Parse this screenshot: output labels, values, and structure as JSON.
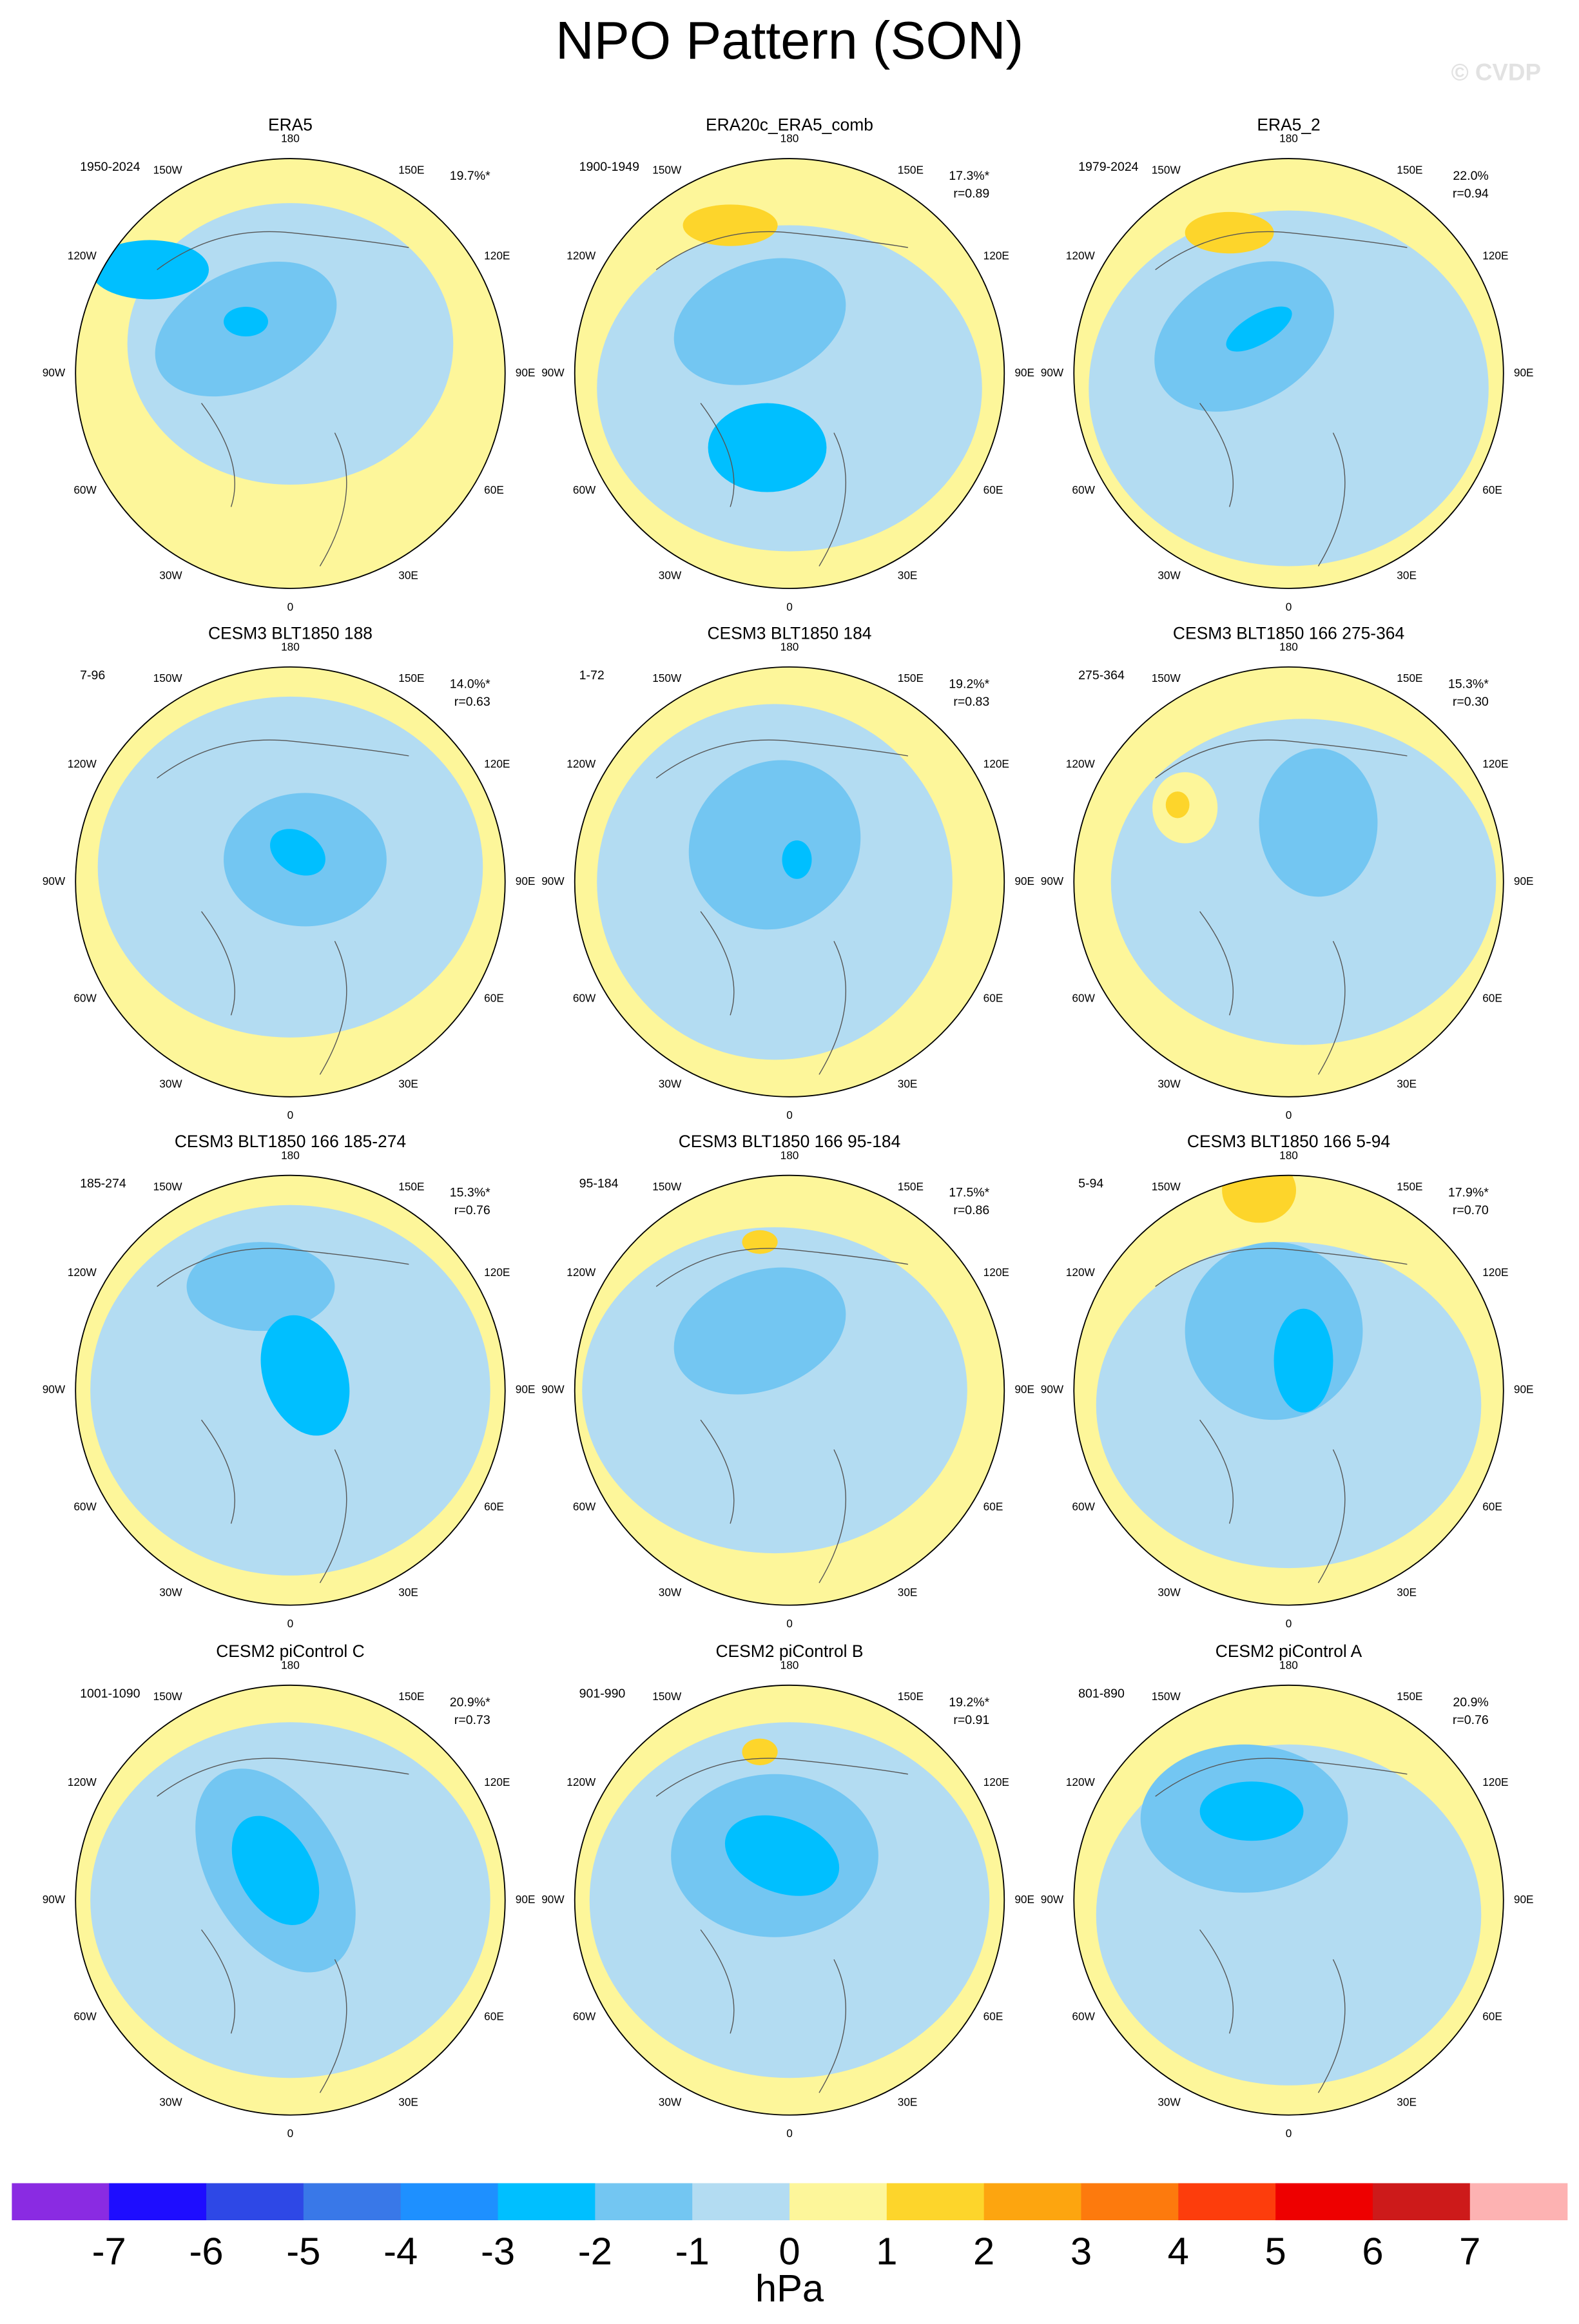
{
  "title": "NPO Pattern (SON)",
  "watermark": "© CVDP",
  "lon_labels": [
    "180",
    "150E",
    "120E",
    "90E",
    "60E",
    "30E",
    "0",
    "30W",
    "60W",
    "90W",
    "120W",
    "150W"
  ],
  "panels": [
    {
      "title": "ERA5",
      "period": "1950-2024",
      "pct": "19.7%*"
    },
    {
      "title": "ERA20c_ERA5_comb",
      "period": "1900-1949",
      "pct": "17.3%*",
      "r": "r=0.89"
    },
    {
      "title": "ERA5_2",
      "period": "1979-2024",
      "pct": "22.0%",
      "r": "r=0.94"
    },
    {
      "title": "CESM3 BLT1850 188",
      "period": "7-96",
      "pct": "14.0%*",
      "r": "r=0.63"
    },
    {
      "title": "CESM3 BLT1850 184",
      "period": "1-72",
      "pct": "19.2%*",
      "r": "r=0.83"
    },
    {
      "title": "CESM3 BLT1850 166 275-364",
      "period": "275-364",
      "pct": "15.3%*",
      "r": "r=0.30"
    },
    {
      "title": "CESM3 BLT1850 166 185-274",
      "period": "185-274",
      "pct": "15.3%*",
      "r": "r=0.76"
    },
    {
      "title": "CESM3 BLT1850 166 95-184",
      "period": "95-184",
      "pct": "17.5%*",
      "r": "r=0.86"
    },
    {
      "title": "CESM3 BLT1850 166 5-94",
      "period": "5-94",
      "pct": "17.9%*",
      "r": "r=0.70"
    },
    {
      "title": "CESM2 piControl C",
      "period": "1001-1090",
      "pct": "20.9%*",
      "r": "r=0.73"
    },
    {
      "title": "CESM2 piControl B",
      "period": "901-990",
      "pct": "19.2%*",
      "r": "r=0.91"
    },
    {
      "title": "CESM2 piControl A",
      "period": "801-890",
      "pct": "20.9%",
      "r": "r=0.76"
    }
  ],
  "colorbar": {
    "levels": [
      -7,
      -6,
      -5,
      -4,
      -3,
      -2,
      -1,
      0,
      1,
      2,
      3,
      4,
      5,
      6,
      7
    ],
    "colors": [
      "#8a2be2",
      "#1e0dff",
      "#2e48e6",
      "#3978e8",
      "#1e90ff",
      "#00bfff",
      "#73c6f2",
      "#b3dcf2",
      "#fdf69a",
      "#fdd52b",
      "#fda50f",
      "#fd7a0d",
      "#fd3d0c",
      "#ee0000",
      "#cd1a1a",
      "#fdb2b2"
    ],
    "units": "hPa"
  }
}
